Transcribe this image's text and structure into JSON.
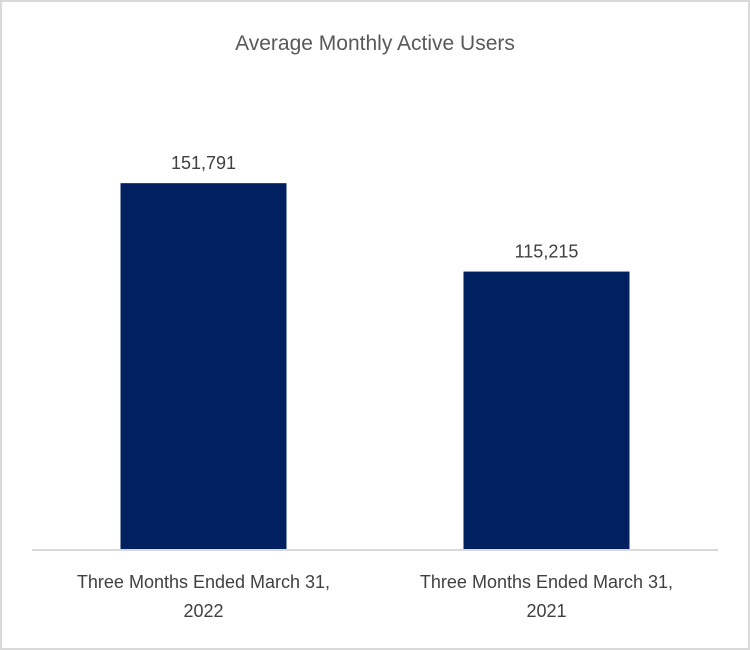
{
  "chart_data": {
    "type": "bar",
    "title": "Average Monthly Active Users",
    "categories": [
      [
        "Three Months Ended March 31,",
        "2022"
      ],
      [
        "Three Months Ended March 31,",
        "2021"
      ]
    ],
    "values": [
      151791,
      115215
    ],
    "value_labels": [
      "151,791",
      "115,215"
    ],
    "ylim": [
      0,
      180000
    ],
    "grid": false,
    "legend": "none",
    "bar_color": "#002060",
    "axis_color": "#d9d9d9"
  }
}
